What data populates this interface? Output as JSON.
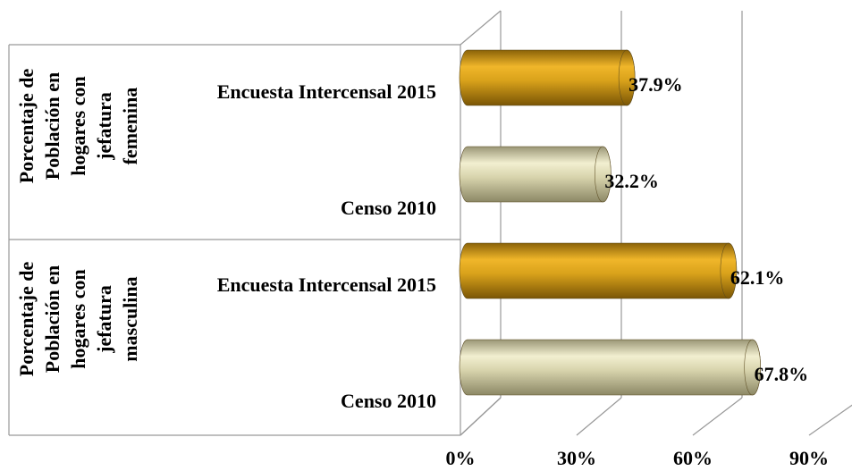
{
  "chart_data": {
    "type": "bar",
    "orientation": "horizontal",
    "style": "3d-cylinder",
    "groups": [
      {
        "label": [
          "Porcentaje de",
          "Población en",
          "hogares con",
          "jefatura",
          "femenina"
        ],
        "categories": [
          "Encuesta Intercensal 2015",
          "Censo 2010"
        ],
        "values": [
          37.9,
          32.2
        ],
        "value_labels": [
          "37.9%",
          "32.2%"
        ]
      },
      {
        "label": [
          "Porcentaje de",
          "Población en",
          "hogares con",
          "jefatura",
          "masculina"
        ],
        "categories": [
          "Encuesta Intercensal 2015",
          "Censo 2010"
        ],
        "values": [
          62.1,
          67.8
        ],
        "value_labels": [
          "62.1%",
          "67.8%"
        ]
      }
    ],
    "colors": [
      "#d9a21b",
      "#d8d4ad"
    ],
    "xlim": [
      0,
      90
    ],
    "xticks": [
      {
        "value": 0,
        "label": "0%"
      },
      {
        "value": 30,
        "label": "30%"
      },
      {
        "value": 60,
        "label": "60%"
      },
      {
        "value": 90,
        "label": "90%"
      }
    ],
    "grid": true
  }
}
